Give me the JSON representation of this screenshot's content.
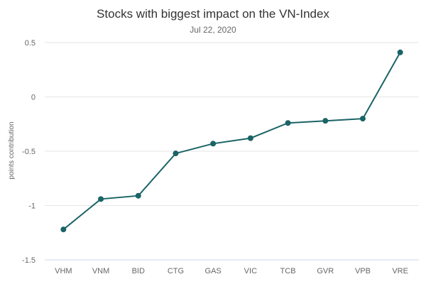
{
  "chart_data": {
    "type": "line",
    "title": "Stocks with biggest impact on the VN-Index",
    "subtitle": "Jul 22, 2020",
    "ylabel": "points contribution",
    "xlabel": "",
    "categories": [
      "VHM",
      "VNM",
      "BID",
      "CTG",
      "GAS",
      "VIC",
      "TCB",
      "GVR",
      "VPB",
      "VRE"
    ],
    "series": [
      {
        "values": [
          -1.22,
          -0.94,
          -0.91,
          -0.52,
          -0.43,
          -0.38,
          -0.24,
          -0.22,
          -0.2,
          0.41
        ]
      }
    ],
    "ylim": [
      -1.5,
      0.5
    ],
    "yticks": [
      0.5,
      0,
      -0.5,
      -1,
      -1.5
    ],
    "ytick_labels": [
      "0.5",
      "0",
      "-0.5",
      "-1",
      "-1.5"
    ],
    "grid": true,
    "legend": "none",
    "colors": {
      "series": "#1b6466",
      "grid": "#e6e6e6",
      "axis": "#ccd6eb"
    }
  }
}
